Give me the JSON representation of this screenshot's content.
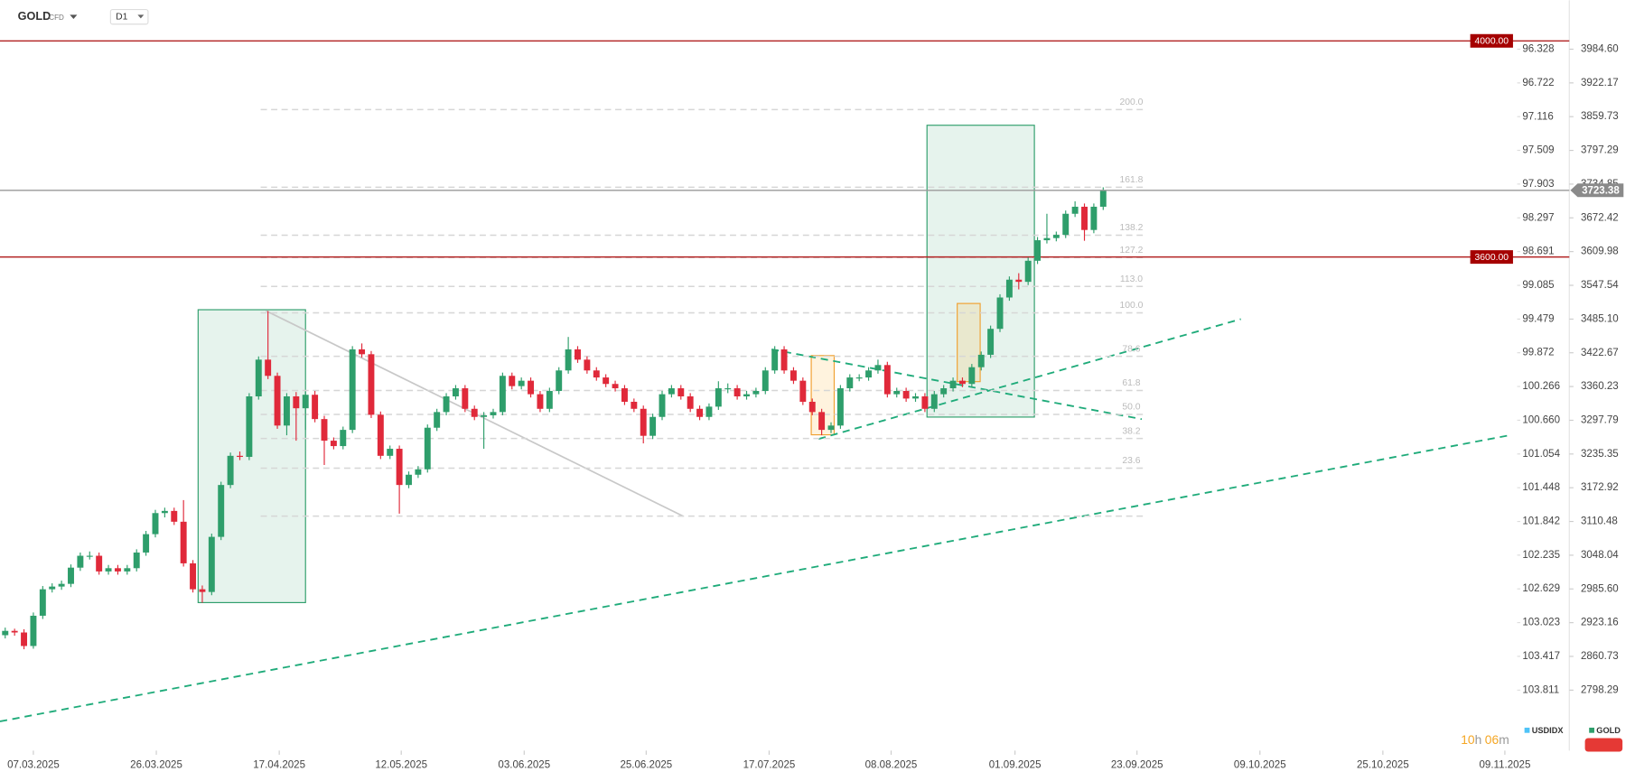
{
  "header": {
    "symbol": "GOLD",
    "kind": "CFD",
    "timeframe": "D1"
  },
  "timer": {
    "hours": "10",
    "h": "h",
    "minutes": "06",
    "m": "m"
  },
  "legend": [
    {
      "name": "USDIDX",
      "color": "#4fc3f7"
    },
    {
      "name": "GOLD",
      "color": "#2e9e6b"
    }
  ],
  "chart_data": {
    "type": "candlestick",
    "up_color": "#2e9e6b",
    "down_color": "#e0293a",
    "ylim": [
      2686.4,
      4075.3
    ],
    "yticks": [
      {
        "value": 3984.6,
        "label": "3984.60"
      },
      3922.17,
      3859.73,
      3797.29,
      3734.85,
      3672.42,
      3609.98,
      3547.54,
      {
        "value": 3485.1,
        "label": "3485.10"
      },
      3422.67,
      3360.23,
      3297.79,
      3235.35,
      3172.92,
      3110.48,
      3048.04,
      {
        "value": 2985.6,
        "label": "2985.60"
      },
      2923.16,
      2860.73,
      2798.29
    ],
    "y2lim": [
      104.517,
      95.756
    ],
    "y2ticks": [
      96.328,
      96.722,
      97.116,
      97.509,
      97.903,
      98.297,
      98.691,
      99.085,
      99.479,
      99.872,
      100.266,
      {
        "value": 100.66,
        "label": "100.660"
      },
      101.054,
      101.448,
      101.842,
      102.235,
      102.629,
      103.023,
      103.417,
      103.811
    ],
    "xticks": [
      {
        "value": 3,
        "label": "07.03.2025"
      },
      {
        "value": 16.1,
        "label": "26.03.2025"
      },
      {
        "value": 29.2,
        "label": "17.04.2025"
      },
      {
        "value": 42.2,
        "label": "12.05.2025"
      },
      {
        "value": 55.3,
        "label": "03.06.2025"
      },
      {
        "value": 68.3,
        "label": "25.06.2025"
      },
      {
        "value": 81.4,
        "label": "17.07.2025"
      },
      {
        "value": 94.4,
        "label": "08.08.2025"
      },
      {
        "value": 107.6,
        "label": "01.09.2025"
      },
      {
        "value": 120.6,
        "label": "23.09.2025"
      },
      {
        "value": 133.7,
        "label": "09.10.2025"
      },
      {
        "value": 146.8,
        "label": "25.10.2025"
      },
      {
        "value": 159.8,
        "label": "09.11.2025"
      }
    ],
    "level_lines": [
      {
        "price": 4000,
        "label": "4000.00"
      },
      {
        "price": 3600,
        "label": "3600.00"
      }
    ],
    "current": {
      "price": 3723.38
    },
    "fib": {
      "range": [
        3120.4,
        3496.6
      ],
      "levels": [
        {
          "value": 0,
          "label": null
        },
        23.6,
        38.2,
        {
          "value": 50,
          "label": "50.0"
        },
        61.8,
        78.6,
        {
          "value": 100,
          "label": "100.0"
        },
        {
          "value": 113,
          "label": "113.0"
        },
        127.2,
        138.2,
        161.8,
        {
          "value": 200,
          "label": "200.0"
        }
      ]
    },
    "ohlc": [
      [
        2900,
        2914,
        2894,
        2908
      ],
      [
        2908,
        2912,
        2899,
        2905
      ],
      [
        2905,
        2911,
        2874,
        2880
      ],
      [
        2880,
        2942,
        2875,
        2936
      ],
      [
        2936,
        2991,
        2930,
        2985
      ],
      [
        2985,
        2996,
        2979,
        2990
      ],
      [
        2990,
        3001,
        2984,
        2995
      ],
      [
        2995,
        3031,
        2989,
        3025
      ],
      [
        3025,
        3053,
        3019,
        3047
      ],
      [
        3047,
        3055,
        3040,
        3047
      ],
      [
        3047,
        3053,
        3012,
        3018
      ],
      [
        3018,
        3030,
        3012,
        3024
      ],
      [
        3024,
        3030,
        3012,
        3018
      ],
      [
        3018,
        3030,
        3012,
        3024
      ],
      [
        3024,
        3059,
        3018,
        3053
      ],
      [
        3053,
        3093,
        3047,
        3087
      ],
      [
        3087,
        3132,
        3081,
        3126
      ],
      [
        3126,
        3136,
        3118,
        3130
      ],
      [
        3130,
        3136,
        3104,
        3110
      ],
      [
        3110,
        3150,
        3027,
        3033
      ],
      [
        3033,
        3039,
        2979,
        2985
      ],
      [
        2985,
        2992,
        2960,
        2980
      ],
      [
        2980,
        3088,
        2974,
        3082
      ],
      [
        3082,
        3184,
        3076,
        3178
      ],
      [
        3178,
        3238,
        3172,
        3232
      ],
      [
        3232,
        3240,
        3224,
        3230
      ],
      [
        3230,
        3348,
        3224,
        3342
      ],
      [
        3342,
        3416,
        3336,
        3410
      ],
      [
        3410,
        3500,
        3374,
        3380
      ],
      [
        3380,
        3386,
        3282,
        3288
      ],
      [
        3288,
        3348,
        3270,
        3342
      ],
      [
        3342,
        3350,
        3260,
        3320
      ],
      [
        3320,
        3351,
        3280,
        3345
      ],
      [
        3345,
        3352,
        3294,
        3300
      ],
      [
        3300,
        3306,
        3215,
        3260
      ],
      [
        3260,
        3266,
        3244,
        3250
      ],
      [
        3250,
        3286,
        3244,
        3280
      ],
      [
        3280,
        3435,
        3274,
        3429
      ],
      [
        3429,
        3440,
        3414,
        3420
      ],
      [
        3420,
        3426,
        3302,
        3308
      ],
      [
        3308,
        3314,
        3226,
        3232
      ],
      [
        3232,
        3251,
        3226,
        3245
      ],
      [
        3245,
        3251,
        3125,
        3178
      ],
      [
        3178,
        3203,
        3172,
        3197
      ],
      [
        3197,
        3213,
        3191,
        3207
      ],
      [
        3207,
        3290,
        3201,
        3284
      ],
      [
        3284,
        3319,
        3278,
        3313
      ],
      [
        3313,
        3348,
        3307,
        3342
      ],
      [
        3342,
        3363,
        3336,
        3357
      ],
      [
        3357,
        3363,
        3313,
        3319
      ],
      [
        3319,
        3325,
        3298,
        3304
      ],
      [
        3304,
        3313,
        3245,
        3307
      ],
      [
        3307,
        3319,
        3301,
        3313
      ],
      [
        3313,
        3386,
        3307,
        3380
      ],
      [
        3380,
        3386,
        3355,
        3361
      ],
      [
        3361,
        3377,
        3355,
        3371
      ],
      [
        3371,
        3377,
        3340,
        3346
      ],
      [
        3346,
        3352,
        3313,
        3319
      ],
      [
        3319,
        3358,
        3313,
        3352
      ],
      [
        3352,
        3396,
        3346,
        3390
      ],
      [
        3390,
        3452,
        3384,
        3429
      ],
      [
        3429,
        3435,
        3404,
        3410
      ],
      [
        3410,
        3416,
        3384,
        3390
      ],
      [
        3390,
        3396,
        3371,
        3377
      ],
      [
        3377,
        3383,
        3359,
        3365
      ],
      [
        3365,
        3371,
        3351,
        3357
      ],
      [
        3357,
        3363,
        3326,
        3332
      ],
      [
        3332,
        3338,
        3313,
        3319
      ],
      [
        3319,
        3325,
        3255,
        3269
      ],
      [
        3269,
        3310,
        3263,
        3304
      ],
      [
        3304,
        3352,
        3298,
        3346
      ],
      [
        3346,
        3363,
        3340,
        3357
      ],
      [
        3357,
        3363,
        3336,
        3342
      ],
      [
        3342,
        3348,
        3313,
        3319
      ],
      [
        3319,
        3325,
        3298,
        3304
      ],
      [
        3304,
        3329,
        3298,
        3323
      ],
      [
        3323,
        3370,
        3317,
        3357
      ],
      [
        3357,
        3366,
        3348,
        3357
      ],
      [
        3357,
        3363,
        3336,
        3342
      ],
      [
        3342,
        3352,
        3336,
        3346
      ],
      [
        3346,
        3358,
        3340,
        3352
      ],
      [
        3352,
        3396,
        3346,
        3390
      ],
      [
        3390,
        3435,
        3384,
        3429
      ],
      [
        3429,
        3435,
        3384,
        3390
      ],
      [
        3390,
        3396,
        3365,
        3371
      ],
      [
        3371,
        3377,
        3326,
        3332
      ],
      [
        3332,
        3338,
        3307,
        3313
      ],
      [
        3313,
        3319,
        3270,
        3280
      ],
      [
        3280,
        3294,
        3274,
        3288
      ],
      [
        3288,
        3363,
        3282,
        3357
      ],
      [
        3357,
        3383,
        3351,
        3377
      ],
      [
        3377,
        3383,
        3370,
        3377
      ],
      [
        3377,
        3396,
        3371,
        3390
      ],
      [
        3390,
        3410,
        3384,
        3400
      ],
      [
        3400,
        3406,
        3340,
        3346
      ],
      [
        3346,
        3358,
        3340,
        3352
      ],
      [
        3352,
        3358,
        3332,
        3338
      ],
      [
        3338,
        3348,
        3332,
        3342
      ],
      [
        3342,
        3348,
        3313,
        3319
      ],
      [
        3319,
        3352,
        3313,
        3346
      ],
      [
        3346,
        3363,
        3340,
        3357
      ],
      [
        3357,
        3377,
        3351,
        3371
      ],
      [
        3371,
        3377,
        3359,
        3365
      ],
      [
        3365,
        3402,
        3359,
        3396
      ],
      [
        3396,
        3425,
        3390,
        3419
      ],
      [
        3419,
        3473,
        3413,
        3467
      ],
      [
        3467,
        3531,
        3461,
        3525
      ],
      [
        3525,
        3564,
        3519,
        3558
      ],
      [
        3558,
        3570,
        3540,
        3554
      ],
      [
        3554,
        3599,
        3548,
        3593
      ],
      [
        3593,
        3637,
        3587,
        3631
      ],
      [
        3631,
        3680,
        3625,
        3635
      ],
      [
        3635,
        3647,
        3629,
        3641
      ],
      [
        3641,
        3686,
        3635,
        3680
      ],
      [
        3680,
        3703,
        3674,
        3693
      ],
      [
        3693,
        3699,
        3630,
        3650
      ],
      [
        3650,
        3699,
        3644,
        3693
      ],
      [
        3693,
        3729,
        3687,
        3723
      ]
    ]
  }
}
